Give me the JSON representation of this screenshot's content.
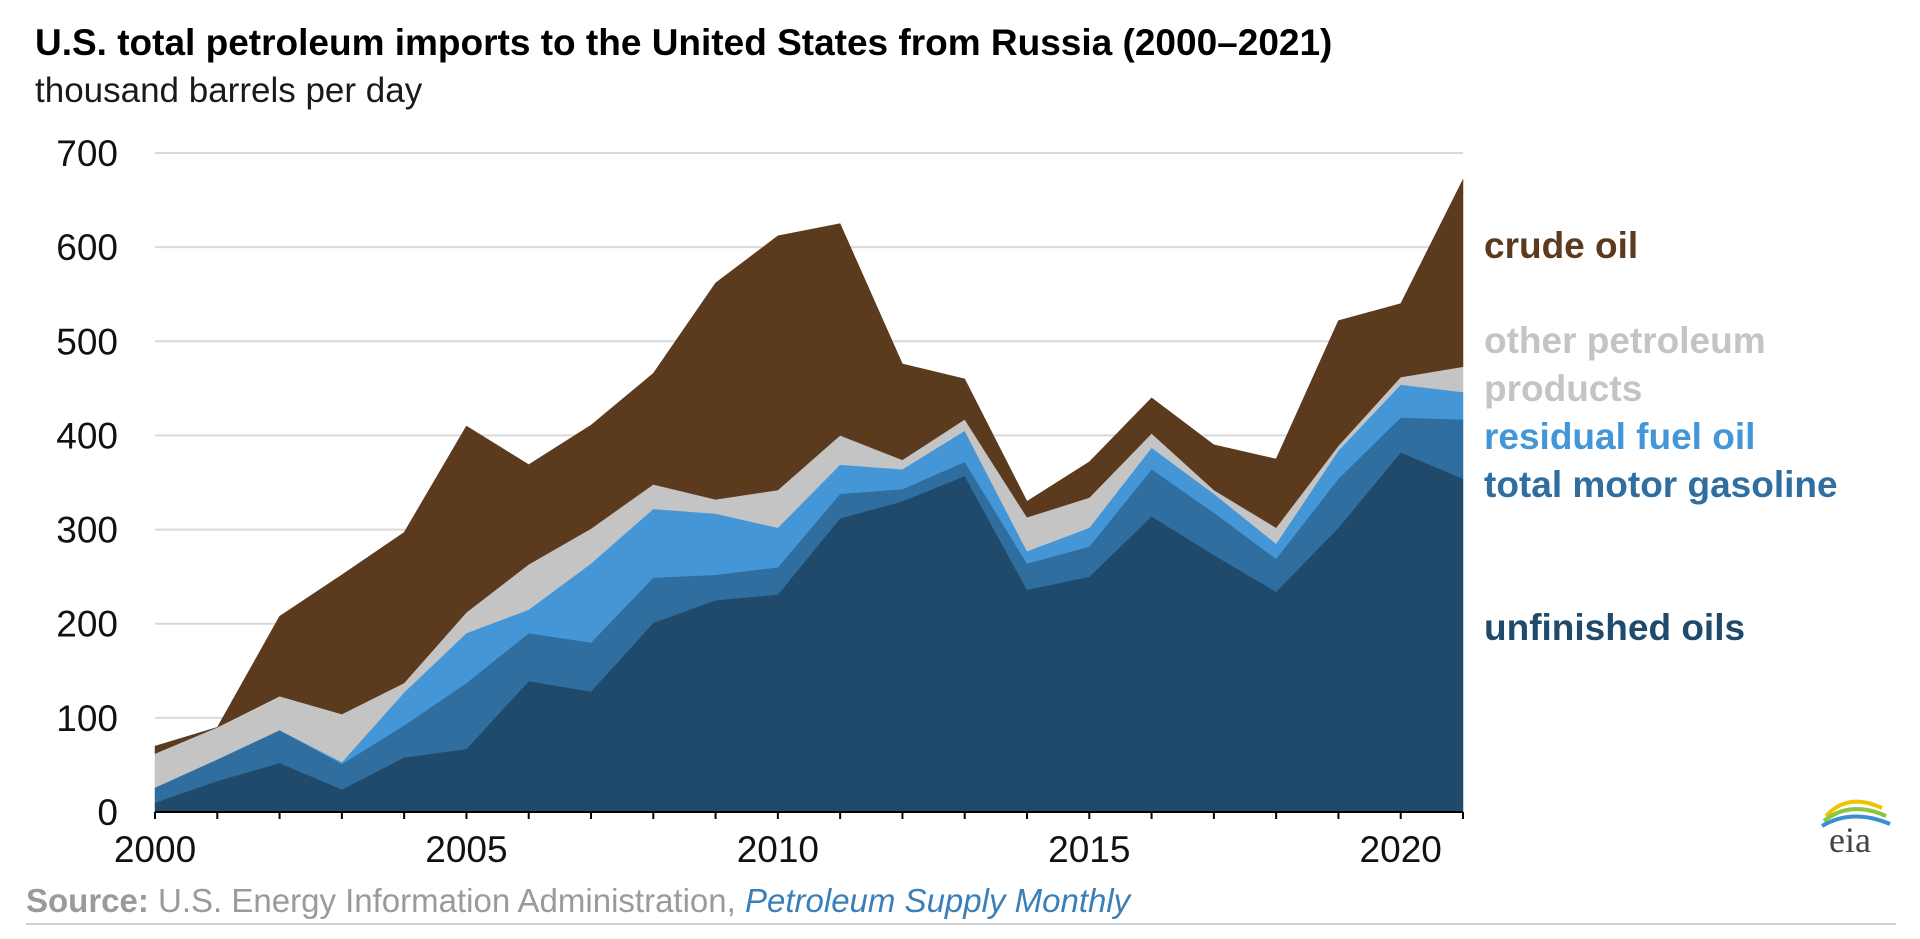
{
  "source_prefix": "Source:",
  "source_text": " U.S. Energy Information Administration, ",
  "source_link": "Petroleum Supply Monthly",
  "logo_text": "eia",
  "colors": {
    "unfinished": "#1f4a6b",
    "gasoline": "#2f6e9e",
    "residual": "#4596d6",
    "other": "#c4c4c4",
    "crude": "#5b3a1e",
    "grid": "#d9d9d9",
    "axis": "#000000"
  },
  "chart_data": {
    "type": "area",
    "stacked": true,
    "title": "U.S. total petroleum imports to the United States from Russia (2000–2021)",
    "subtitle": "thousand barrels per day",
    "xlabel": "",
    "ylabel": "",
    "xlim": [
      2000,
      2021
    ],
    "ylim": [
      0,
      700
    ],
    "grid": true,
    "x": [
      2000,
      2001,
      2002,
      2003,
      2004,
      2005,
      2006,
      2007,
      2008,
      2009,
      2010,
      2011,
      2012,
      2013,
      2014,
      2015,
      2016,
      2017,
      2018,
      2019,
      2020,
      2021
    ],
    "x_ticks": [
      "2000",
      "2005",
      "2010",
      "2015",
      "2020"
    ],
    "y_ticks": [
      "0",
      "100",
      "200",
      "300",
      "400",
      "500",
      "600",
      "700"
    ],
    "series": [
      {
        "name": "unfinished oils",
        "key": "unfinished",
        "values": [
          10,
          33,
          52,
          24,
          58,
          67,
          139,
          128,
          201,
          225,
          231,
          312,
          330,
          357,
          236,
          250,
          314,
          273,
          234,
          302,
          382,
          354
        ]
      },
      {
        "name": "total motor gasoline",
        "key": "gasoline",
        "values": [
          16,
          23,
          35,
          27,
          34,
          70,
          51,
          52,
          48,
          27,
          29,
          26,
          13,
          15,
          28,
          32,
          50,
          45,
          35,
          52,
          37,
          63
        ]
      },
      {
        "name": "residual fuel oil",
        "key": "residual",
        "values": [
          0,
          0,
          0,
          2,
          35,
          53,
          25,
          84,
          73,
          65,
          42,
          31,
          21,
          33,
          13,
          20,
          23,
          20,
          16,
          30,
          35,
          29
        ]
      },
      {
        "name": "other petroleum products",
        "key": "other",
        "values": [
          36,
          34,
          36,
          51,
          10,
          22,
          48,
          37,
          26,
          15,
          40,
          31,
          10,
          12,
          36,
          32,
          15,
          4,
          17,
          5,
          8,
          27
        ]
      },
      {
        "name": "crude oil",
        "key": "crude",
        "values": [
          8,
          0,
          85,
          148,
          160,
          198,
          106,
          110,
          118,
          230,
          270,
          225,
          102,
          43,
          17,
          38,
          38,
          48,
          73,
          133,
          78,
          199
        ]
      }
    ],
    "legend": [
      {
        "key": "crude",
        "lines": [
          "crude oil"
        ]
      },
      {
        "key": "other",
        "lines": [
          "other petroleum",
          "products"
        ]
      },
      {
        "key": "residual",
        "lines": [
          "residual fuel oil"
        ]
      },
      {
        "key": "gasoline",
        "lines": [
          "total motor gasoline"
        ]
      },
      {
        "key": "unfinished",
        "lines": [
          "unfinished oils"
        ]
      }
    ]
  }
}
